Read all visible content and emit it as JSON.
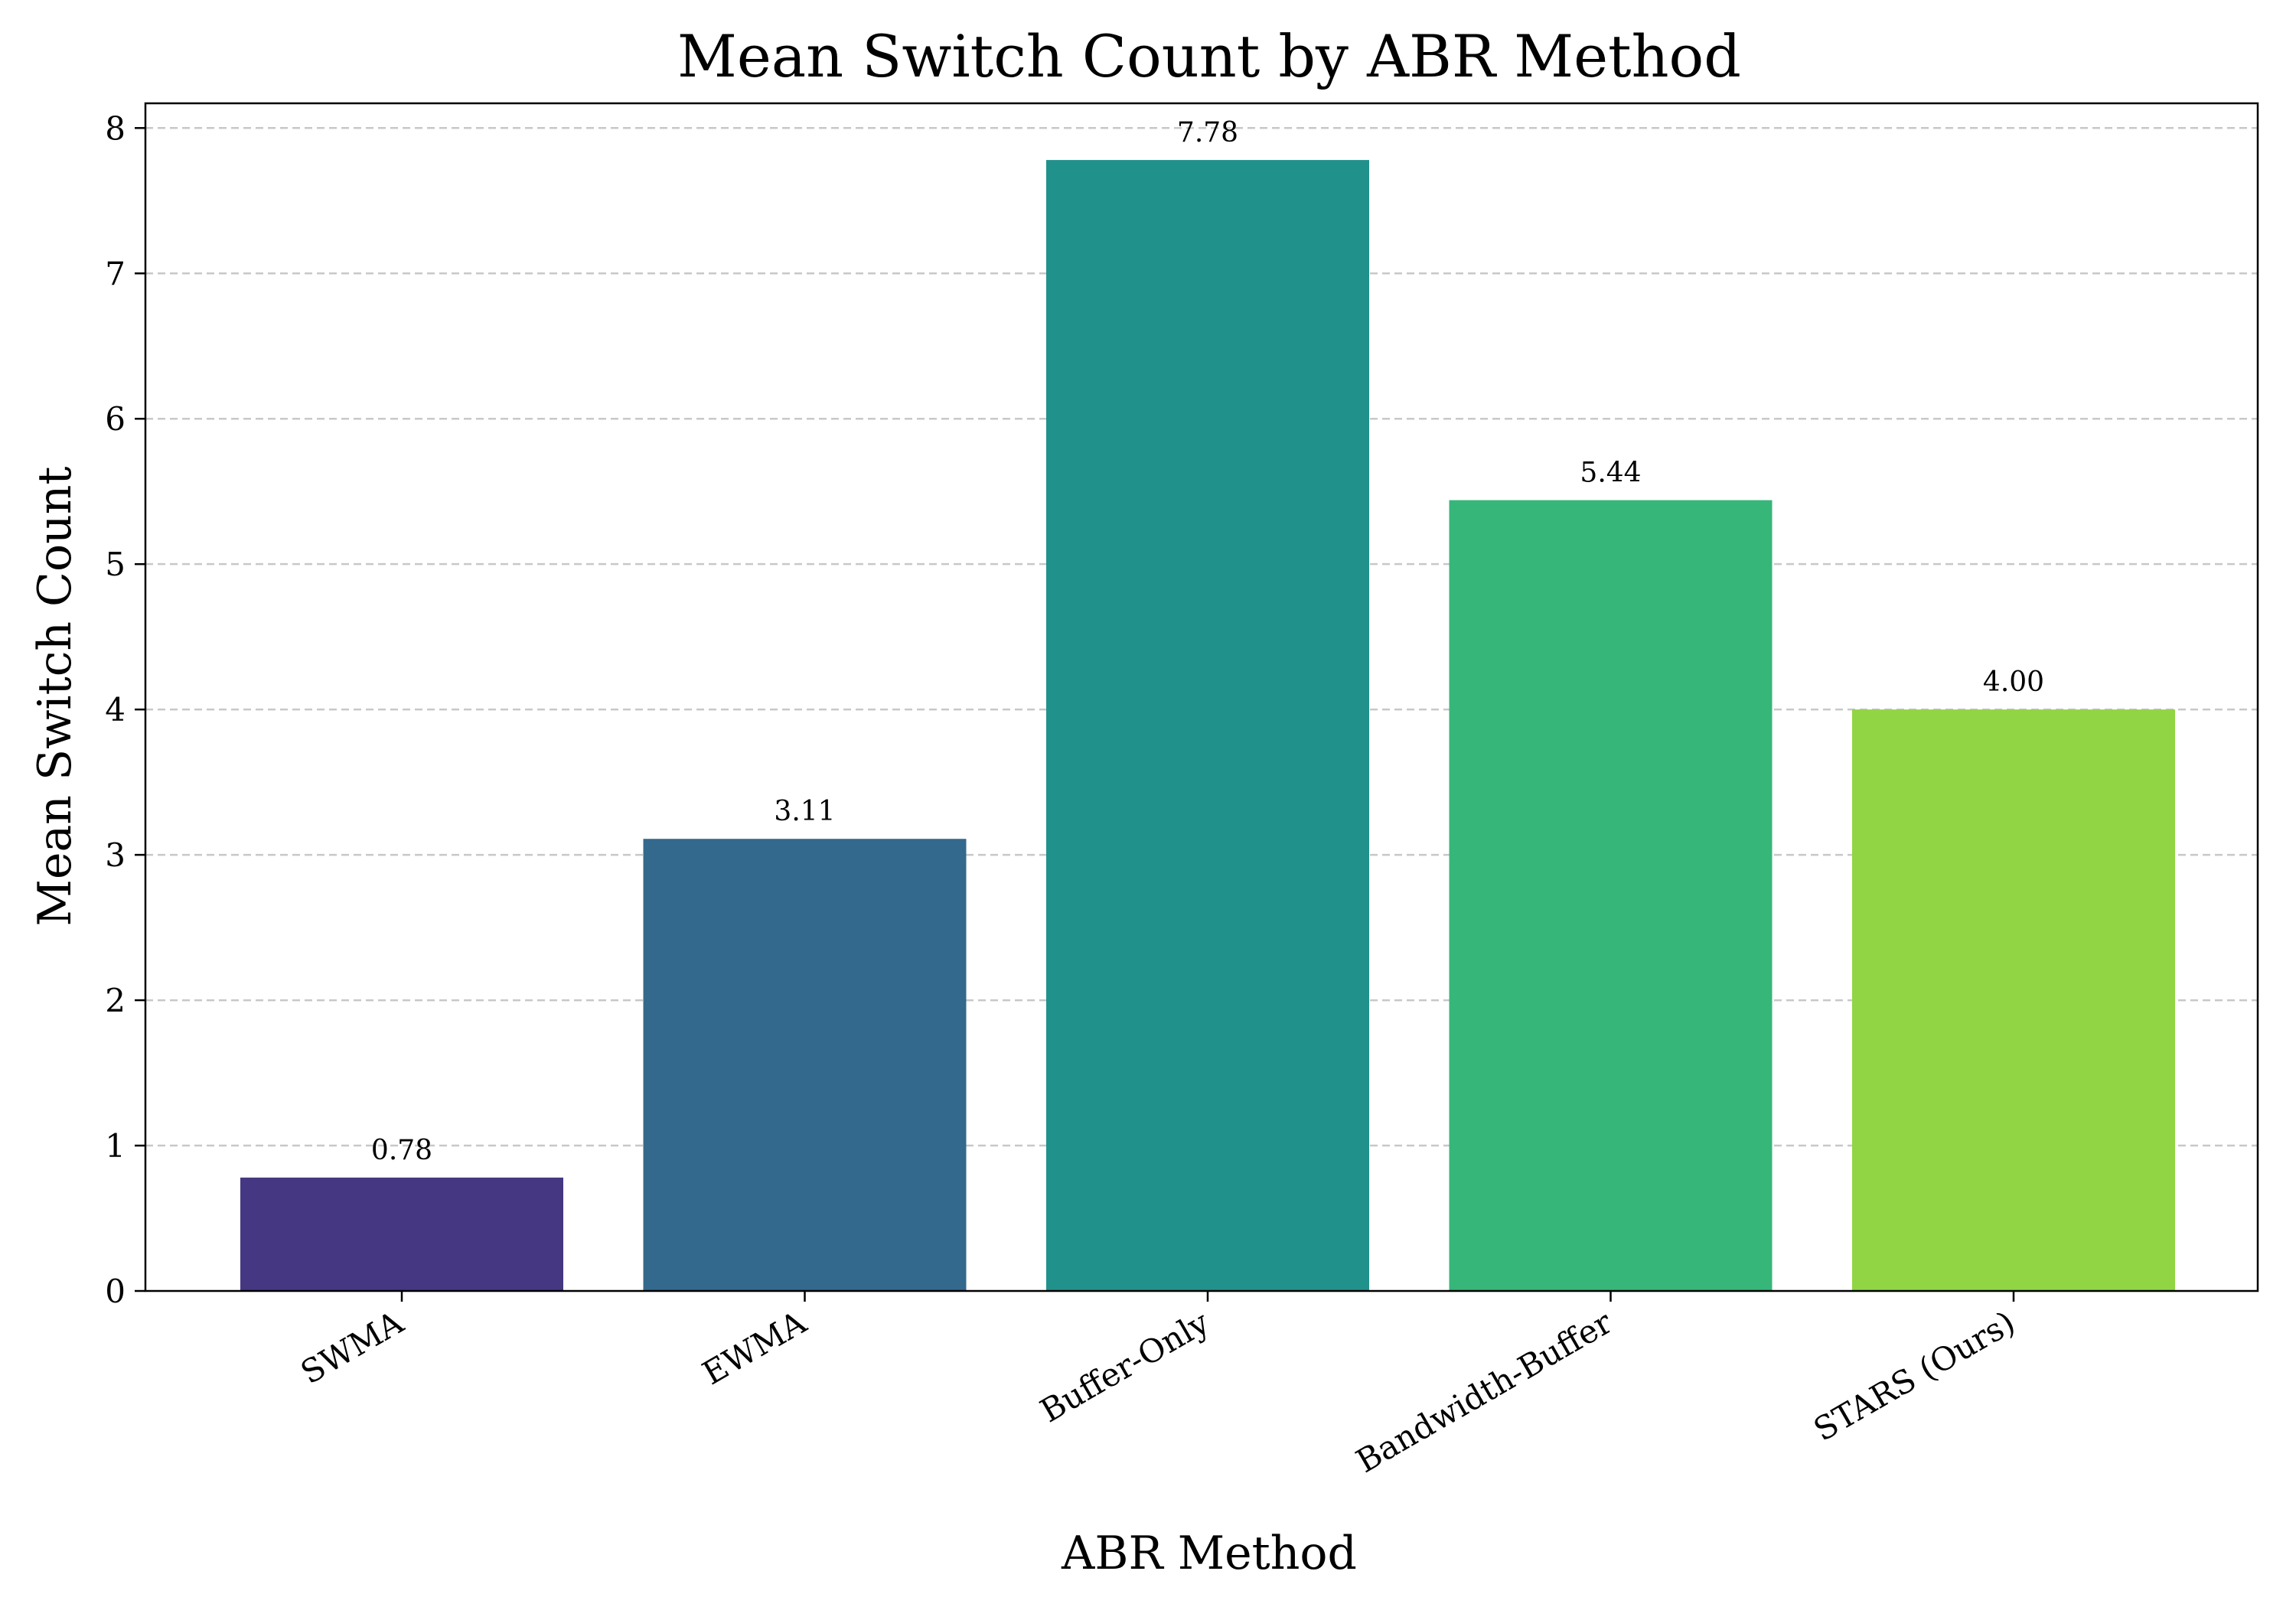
{
  "chart_data": {
    "type": "bar",
    "title": "Mean Switch Count by ABR Method",
    "xlabel": "ABR Method",
    "ylabel": "Mean Switch Count",
    "categories": [
      "SWMA",
      "EWMA",
      "Buffer-Only",
      "Bandwidth-Buffer",
      "STARS (Ours)"
    ],
    "values": [
      0.78,
      3.11,
      7.78,
      5.44,
      4.0
    ],
    "data_labels": [
      "0.78",
      "3.11",
      "7.78",
      "5.44",
      "4.00"
    ],
    "colors": [
      "#453781",
      "#33698c",
      "#21918c",
      "#37b679",
      "#91d544"
    ],
    "ylim": [
      0,
      8.17
    ],
    "yticks": [
      0,
      1,
      2,
      3,
      4,
      5,
      6,
      7,
      8
    ],
    "grid": "y-dashed",
    "legend": "none"
  }
}
